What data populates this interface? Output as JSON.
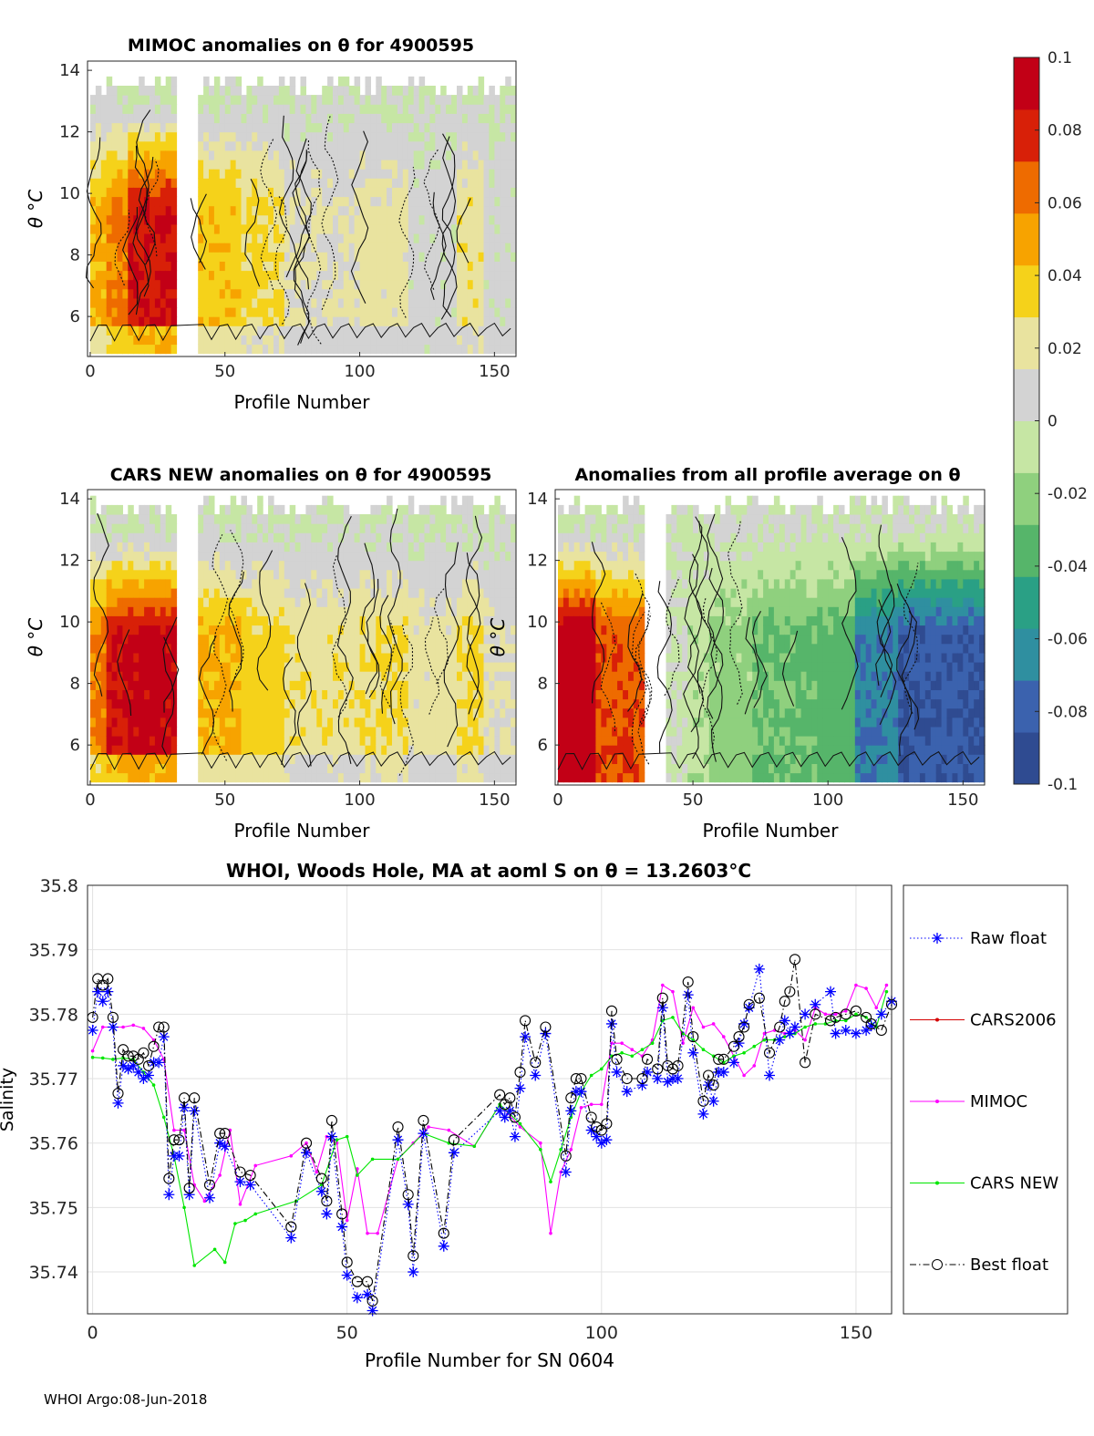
{
  "figure": {
    "footer": "WHOI Argo:08-Jun-2018"
  },
  "colorbar": {
    "ticks": [
      "0.1",
      "0.08",
      "0.06",
      "0.04",
      "0.02",
      "0",
      "-0.02",
      "-0.04",
      "-0.06",
      "-0.08",
      "-0.1"
    ],
    "range": [
      -0.1,
      0.1
    ],
    "colors": [
      "#2f4b91",
      "#3b62ae",
      "#2f8fa0",
      "#2aa085",
      "#56b56a",
      "#8fd07e",
      "#c6e6a4",
      "#d3d3d3",
      "#e9e39f",
      "#f5d21a",
      "#f7a300",
      "#ee6b00",
      "#d82008",
      "#c20016"
    ]
  },
  "chart_data": [
    {
      "type": "heatmap",
      "id": "mimoc",
      "title": "MIMOC anomalies on θ  for 4900595",
      "xlabel": "Profile Number",
      "ylabel": "θ °C",
      "xlim": [
        -1,
        158
      ],
      "ylim": [
        4.7,
        14.3
      ],
      "xticks": [
        0,
        50,
        100,
        150
      ],
      "yticks": [
        6,
        8,
        10,
        12,
        14
      ],
      "gap": [
        33,
        39
      ],
      "top_theta": 13.7,
      "segments": [
        [
          0,
          6,
          0.045
        ],
        [
          6,
          14,
          0.06
        ],
        [
          14,
          31,
          0.085
        ],
        [
          33,
          39,
          null
        ],
        [
          39,
          55,
          0.04
        ],
        [
          55,
          72,
          0.03
        ],
        [
          72,
          100,
          0.015
        ],
        [
          100,
          118,
          0.02
        ],
        [
          118,
          135,
          0.005
        ],
        [
          135,
          145,
          0.025
        ],
        [
          145,
          158,
          0.005
        ]
      ]
    },
    {
      "type": "heatmap",
      "id": "cars_new",
      "title": "CARS NEW anomalies on θ for 4900595",
      "xlabel": "Profile Number",
      "ylabel": "θ °C",
      "xlim": [
        -1,
        158
      ],
      "ylim": [
        4.7,
        14.3
      ],
      "xticks": [
        0,
        50,
        100,
        150
      ],
      "yticks": [
        6,
        8,
        10,
        12,
        14
      ],
      "gap": [
        33,
        39
      ],
      "top_theta": 13.9,
      "segments": [
        [
          0,
          6,
          0.06
        ],
        [
          6,
          14,
          0.085
        ],
        [
          14,
          31,
          0.09
        ],
        [
          33,
          39,
          null
        ],
        [
          39,
          55,
          0.045
        ],
        [
          55,
          72,
          0.035
        ],
        [
          72,
          100,
          0.025
        ],
        [
          100,
          118,
          0.03
        ],
        [
          118,
          135,
          0.02
        ],
        [
          135,
          145,
          0.03
        ],
        [
          145,
          158,
          0.015
        ]
      ]
    },
    {
      "type": "heatmap",
      "id": "all_profile",
      "title": "Anomalies from all profile average on θ",
      "xlabel": "Profile Number",
      "ylabel": "θ °C",
      "xlim": [
        -1,
        158
      ],
      "ylim": [
        4.7,
        14.3
      ],
      "xticks": [
        0,
        50,
        100,
        150
      ],
      "yticks": [
        6,
        8,
        10,
        12,
        14
      ],
      "gap": [
        33,
        39
      ],
      "top_theta": 14.0,
      "segments": [
        [
          0,
          14,
          0.1
        ],
        [
          14,
          31,
          0.07
        ],
        [
          33,
          39,
          null
        ],
        [
          39,
          47,
          0.0
        ],
        [
          47,
          55,
          -0.01
        ],
        [
          55,
          72,
          -0.02
        ],
        [
          72,
          95,
          -0.03
        ],
        [
          95,
          110,
          -0.035
        ],
        [
          110,
          125,
          -0.07
        ],
        [
          125,
          158,
          -0.085
        ]
      ]
    },
    {
      "type": "line",
      "id": "salinity",
      "title": "WHOI, Woods Hole, MA at aoml S on θ = 13.2603°C",
      "xlabel": "Profile Number for SN 0604",
      "ylabel": "Salinity",
      "xlim": [
        -1,
        157
      ],
      "ylim": [
        35.7335,
        35.8
      ],
      "xticks": [
        0,
        50,
        100,
        150
      ],
      "yticks": [
        35.74,
        35.75,
        35.76,
        35.77,
        35.78,
        35.79,
        35.8
      ],
      "ytick_labels": [
        "35.74",
        "35.75",
        "35.76",
        "35.77",
        "35.78",
        "35.79",
        "35.8"
      ],
      "grid": true,
      "legend": "right",
      "series": [
        {
          "name": "Raw float",
          "color": "#0000ff",
          "style": "dotted-star",
          "x": [
            0,
            1,
            2,
            3,
            4,
            5,
            6,
            7,
            8,
            9,
            10,
            11,
            12,
            13,
            14,
            15,
            16,
            17,
            18,
            19,
            20,
            23,
            25,
            26,
            29,
            31,
            39,
            42,
            45,
            46,
            47,
            49,
            50,
            52,
            54,
            55,
            60,
            62,
            63,
            65,
            69,
            71,
            80,
            81,
            82,
            83,
            84,
            85,
            87,
            89,
            93,
            94,
            95,
            96,
            98,
            99,
            100,
            101,
            102,
            103,
            105,
            108,
            109,
            111,
            112,
            113,
            114,
            115,
            117,
            118,
            120,
            121,
            122,
            123,
            124,
            126,
            127,
            128,
            129,
            131,
            133,
            135,
            136,
            137,
            138,
            140,
            142,
            145,
            146,
            148,
            150,
            152,
            153,
            155,
            157
          ],
          "y": [
            35.7775,
            35.7835,
            35.782,
            35.7835,
            35.778,
            35.7662,
            35.772,
            35.7715,
            35.772,
            35.771,
            35.77,
            35.7705,
            35.7725,
            35.7725,
            35.7765,
            35.752,
            35.758,
            35.758,
            35.7655,
            35.752,
            35.765,
            35.7515,
            35.76,
            35.7595,
            35.754,
            35.7535,
            35.7453,
            35.7585,
            35.7525,
            35.749,
            35.761,
            35.747,
            35.7395,
            35.736,
            35.7365,
            35.734,
            35.7605,
            35.7505,
            35.74,
            35.7615,
            35.744,
            35.7585,
            35.765,
            35.764,
            35.765,
            35.761,
            35.7685,
            35.7765,
            35.7705,
            35.777,
            35.7555,
            35.765,
            35.768,
            35.768,
            35.762,
            35.761,
            35.76,
            35.7605,
            35.7785,
            35.771,
            35.768,
            35.769,
            35.771,
            35.77,
            35.781,
            35.7695,
            35.77,
            35.77,
            35.783,
            35.774,
            35.7645,
            35.769,
            35.7665,
            35.771,
            35.771,
            35.7725,
            35.7755,
            35.7785,
            35.781,
            35.787,
            35.7705,
            35.776,
            35.779,
            35.777,
            35.778,
            35.78,
            35.7815,
            35.7835,
            35.777,
            35.7775,
            35.777,
            35.7775,
            35.7782,
            35.78,
            35.782
          ]
        },
        {
          "name": "CARS2006",
          "color": "#d40000",
          "style": "solid-dot",
          "x": [],
          "y": []
        },
        {
          "name": "MIMOC",
          "color": "#ff00ff",
          "style": "solid-dot",
          "x": [
            0,
            2,
            4,
            6,
            8,
            10,
            12,
            14,
            16,
            18,
            20,
            22,
            25,
            27,
            29,
            32,
            39,
            42,
            44,
            46,
            48,
            50,
            52,
            54,
            56,
            60,
            63,
            66,
            70,
            75,
            80,
            84,
            88,
            90,
            92,
            94,
            96,
            98,
            100,
            102,
            104,
            106,
            108,
            110,
            112,
            114,
            116,
            118,
            120,
            122,
            124,
            126,
            128,
            130,
            132,
            134,
            136,
            138,
            140,
            142,
            144,
            146,
            148,
            150,
            152,
            154,
            156
          ],
          "y": [
            35.7743,
            35.778,
            35.778,
            35.778,
            35.7783,
            35.7778,
            35.776,
            35.773,
            35.762,
            35.762,
            35.7535,
            35.751,
            35.755,
            35.762,
            35.7505,
            35.7565,
            35.758,
            35.76,
            35.7555,
            35.761,
            35.76,
            35.748,
            35.756,
            35.746,
            35.746,
            35.7575,
            35.76,
            35.7625,
            35.762,
            35.7595,
            35.766,
            35.7625,
            35.76,
            35.746,
            35.7555,
            35.759,
            35.7655,
            35.766,
            35.766,
            35.7755,
            35.7755,
            35.7745,
            35.7735,
            35.776,
            35.7845,
            35.7835,
            35.7755,
            35.781,
            35.778,
            35.7785,
            35.7765,
            35.7735,
            35.7705,
            35.772,
            35.777,
            35.7775,
            35.777,
            35.7775,
            35.776,
            35.781,
            35.78,
            35.78,
            35.7805,
            35.7845,
            35.784,
            35.781,
            35.7845
          ]
        },
        {
          "name": "CARS NEW",
          "color": "#00e600",
          "style": "solid-dot",
          "x": [
            0,
            2,
            4,
            6,
            8,
            10,
            12,
            14,
            16,
            18,
            20,
            24,
            26,
            28,
            30,
            32,
            40,
            45,
            48,
            50,
            52,
            55,
            60,
            65,
            70,
            75,
            80,
            84,
            88,
            90,
            92,
            94,
            96,
            98,
            100,
            102,
            104,
            106,
            108,
            110,
            112,
            114,
            116,
            118,
            120,
            122,
            124,
            126,
            128,
            130,
            132,
            134,
            136,
            138,
            140,
            142,
            144,
            146,
            148,
            150,
            152,
            154,
            156
          ],
          "y": [
            35.7733,
            35.7732,
            35.773,
            35.7732,
            35.773,
            35.771,
            35.769,
            35.764,
            35.758,
            35.75,
            35.741,
            35.7435,
            35.7415,
            35.7475,
            35.748,
            35.749,
            35.751,
            35.7535,
            35.7605,
            35.761,
            35.755,
            35.7575,
            35.7575,
            35.7615,
            35.76,
            35.7595,
            35.766,
            35.763,
            35.759,
            35.754,
            35.759,
            35.764,
            35.768,
            35.7705,
            35.7715,
            35.7735,
            35.774,
            35.7735,
            35.7745,
            35.7755,
            35.779,
            35.7795,
            35.777,
            35.776,
            35.7745,
            35.7735,
            35.7725,
            35.7735,
            35.774,
            35.775,
            35.776,
            35.776,
            35.7765,
            35.777,
            35.778,
            35.7785,
            35.7785,
            35.779,
            35.779,
            35.78,
            35.7795,
            35.778,
            35.7835
          ]
        },
        {
          "name": "Best float",
          "color": "#000000",
          "style": "dashdot-circle",
          "x": [
            0,
            1,
            2,
            3,
            4,
            5,
            6,
            7,
            8,
            9,
            10,
            11,
            12,
            13,
            14,
            15,
            16,
            17,
            18,
            19,
            20,
            23,
            25,
            26,
            29,
            31,
            39,
            42,
            45,
            46,
            47,
            49,
            50,
            52,
            54,
            55,
            60,
            62,
            63,
            65,
            69,
            71,
            80,
            81,
            82,
            83,
            84,
            85,
            87,
            89,
            93,
            94,
            95,
            96,
            98,
            99,
            100,
            101,
            102,
            103,
            105,
            108,
            109,
            111,
            112,
            113,
            114,
            115,
            117,
            118,
            120,
            121,
            122,
            123,
            124,
            126,
            127,
            128,
            129,
            131,
            133,
            135,
            136,
            137,
            138,
            140,
            142,
            145,
            146,
            148,
            150,
            152,
            153,
            155,
            157
          ],
          "y": [
            35.7795,
            35.7855,
            35.7845,
            35.7855,
            35.7795,
            35.7677,
            35.7745,
            35.7735,
            35.7735,
            35.773,
            35.774,
            35.772,
            35.775,
            35.778,
            35.778,
            35.7545,
            35.7605,
            35.7605,
            35.767,
            35.753,
            35.767,
            35.7535,
            35.7615,
            35.7615,
            35.7555,
            35.755,
            35.747,
            35.76,
            35.7545,
            35.751,
            35.7635,
            35.749,
            35.7415,
            35.7385,
            35.7385,
            35.7355,
            35.7625,
            35.752,
            35.7425,
            35.7635,
            35.746,
            35.7605,
            35.7675,
            35.766,
            35.767,
            35.764,
            35.771,
            35.779,
            35.7725,
            35.778,
            35.758,
            35.767,
            35.77,
            35.77,
            35.764,
            35.7625,
            35.762,
            35.763,
            35.7805,
            35.773,
            35.77,
            35.77,
            35.773,
            35.7715,
            35.7825,
            35.772,
            35.7715,
            35.772,
            35.785,
            35.7765,
            35.7665,
            35.7705,
            35.769,
            35.773,
            35.773,
            35.775,
            35.7765,
            35.778,
            35.7815,
            35.7825,
            35.774,
            35.778,
            35.782,
            35.7835,
            35.7885,
            35.7725,
            35.78,
            35.779,
            35.7795,
            35.78,
            35.7805,
            35.7795,
            35.7785,
            35.7775,
            35.7815
          ]
        }
      ]
    }
  ]
}
